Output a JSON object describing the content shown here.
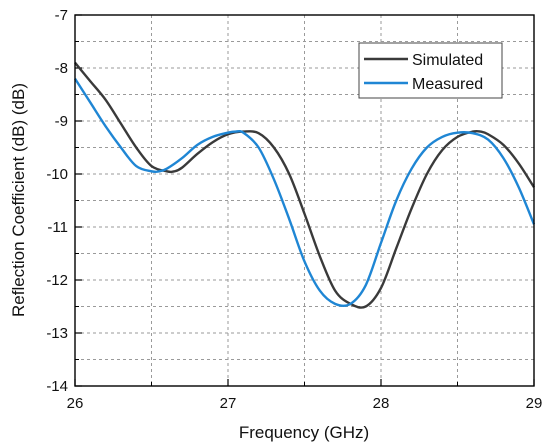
{
  "chart_data": {
    "type": "line",
    "xlabel": "Frequency (GHz)",
    "ylabel": "Reflection Coefficient (dB) (dB)",
    "xlim": [
      26,
      29
    ],
    "ylim": [
      -14,
      -7
    ],
    "x_ticks": [
      "26",
      "27",
      "28",
      "29"
    ],
    "y_ticks": [
      "-7",
      "-8",
      "-9",
      "-10",
      "-11",
      "-12",
      "-13",
      "-14"
    ],
    "grid": true,
    "legend_position": "top-right",
    "series": [
      {
        "name": "Simulated",
        "color": "#3a3a3a",
        "x": [
          26.0,
          26.1,
          26.2,
          26.3,
          26.4,
          26.5,
          26.6,
          26.65,
          26.7,
          26.8,
          26.9,
          27.0,
          27.1,
          27.2,
          27.3,
          27.4,
          27.5,
          27.6,
          27.7,
          27.8,
          27.9,
          28.0,
          28.1,
          28.2,
          28.3,
          28.4,
          28.5,
          28.6,
          28.65,
          28.7,
          28.8,
          28.9,
          29.0
        ],
        "y": [
          -7.9,
          -8.25,
          -8.6,
          -9.05,
          -9.5,
          -9.85,
          -9.95,
          -9.95,
          -9.88,
          -9.62,
          -9.4,
          -9.25,
          -9.2,
          -9.23,
          -9.5,
          -10.0,
          -10.75,
          -11.55,
          -12.2,
          -12.45,
          -12.5,
          -12.15,
          -11.4,
          -10.65,
          -10.0,
          -9.55,
          -9.3,
          -9.2,
          -9.2,
          -9.25,
          -9.45,
          -9.8,
          -10.25
        ]
      },
      {
        "name": "Measured",
        "color": "#1f86d4",
        "x": [
          26.0,
          26.1,
          26.2,
          26.3,
          26.4,
          26.5,
          26.55,
          26.6,
          26.7,
          26.8,
          26.9,
          27.0,
          27.05,
          27.1,
          27.2,
          27.3,
          27.4,
          27.5,
          27.6,
          27.7,
          27.8,
          27.9,
          28.0,
          28.1,
          28.2,
          28.3,
          28.4,
          28.5,
          28.6,
          28.7,
          28.8,
          28.9,
          29.0
        ],
        "y": [
          -8.2,
          -8.65,
          -9.1,
          -9.5,
          -9.85,
          -9.95,
          -9.95,
          -9.9,
          -9.7,
          -9.45,
          -9.3,
          -9.22,
          -9.2,
          -9.22,
          -9.5,
          -10.1,
          -10.85,
          -11.65,
          -12.2,
          -12.45,
          -12.45,
          -12.1,
          -11.3,
          -10.5,
          -9.9,
          -9.5,
          -9.3,
          -9.22,
          -9.23,
          -9.35,
          -9.7,
          -10.25,
          -10.95
        ]
      }
    ]
  }
}
